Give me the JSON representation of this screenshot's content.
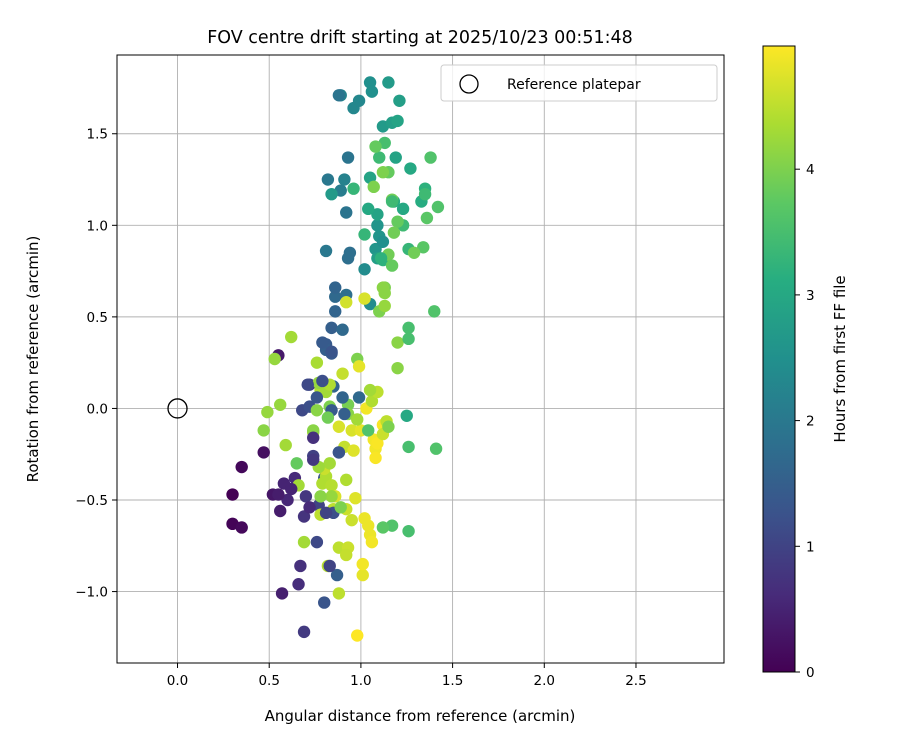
{
  "chart_data": {
    "type": "scatter",
    "title": "FOV centre drift starting at 2025/10/23 00:51:48",
    "xlabel": "Angular distance from reference (arcmin)",
    "ylabel": "Rotation from reference (arcmin)",
    "xlim": [
      -0.33,
      2.98
    ],
    "ylim": [
      -1.39,
      1.93
    ],
    "xticks": [
      0.0,
      0.5,
      1.0,
      1.5,
      2.0,
      2.5
    ],
    "xtick_labels": [
      "0.0",
      "0.5",
      "1.0",
      "1.5",
      "2.0",
      "2.5"
    ],
    "yticks": [
      -1.0,
      -0.5,
      0.0,
      0.5,
      1.0,
      1.5
    ],
    "ytick_labels": [
      "−1.0",
      "−0.5",
      "0.0",
      "0.5",
      "1.0",
      "1.5"
    ],
    "grid": true,
    "legend": {
      "position": "top-right",
      "entries": [
        "Reference platepar"
      ]
    },
    "reference_point": {
      "x": 0.0,
      "y": 0.0
    },
    "colorbar": {
      "label": "Hours from first FF file",
      "min": 0,
      "max": 4.98,
      "ticks": [
        0,
        1,
        2,
        3,
        4
      ],
      "tick_labels": [
        "0",
        "1",
        "2",
        "3",
        "4"
      ],
      "colormap": "viridis"
    },
    "points": [
      {
        "x": 0.3,
        "y": -0.47,
        "h": 0.0
      },
      {
        "x": 0.3,
        "y": -0.63,
        "h": 0.05
      },
      {
        "x": 0.35,
        "y": -0.32,
        "h": 0.1
      },
      {
        "x": 0.35,
        "y": -0.65,
        "h": 0.12
      },
      {
        "x": 0.47,
        "y": -0.24,
        "h": 0.2
      },
      {
        "x": 0.52,
        "y": -0.47,
        "h": 0.3
      },
      {
        "x": 0.55,
        "y": 0.29,
        "h": 0.35
      },
      {
        "x": 0.56,
        "y": -0.56,
        "h": 0.4
      },
      {
        "x": 0.57,
        "y": -1.01,
        "h": 0.45
      },
      {
        "x": 0.58,
        "y": -0.41,
        "h": 0.5
      },
      {
        "x": 0.6,
        "y": -0.5,
        "h": 0.55
      },
      {
        "x": 0.64,
        "y": -0.38,
        "h": 0.6
      },
      {
        "x": 0.66,
        "y": -0.96,
        "h": 0.65
      },
      {
        "x": 0.67,
        "y": -0.86,
        "h": 0.7
      },
      {
        "x": 0.69,
        "y": -0.59,
        "h": 0.75
      },
      {
        "x": 0.7,
        "y": -0.48,
        "h": 0.8
      },
      {
        "x": 0.69,
        "y": -1.22,
        "h": 0.85
      },
      {
        "x": 0.72,
        "y": 0.13,
        "h": 0.9
      },
      {
        "x": 0.74,
        "y": -0.26,
        "h": 0.95
      },
      {
        "x": 0.77,
        "y": -0.53,
        "h": 1.0
      },
      {
        "x": 0.76,
        "y": -0.73,
        "h": 1.1
      },
      {
        "x": 0.68,
        "y": -0.01,
        "h": 1.1
      },
      {
        "x": 0.72,
        "y": 0.01,
        "h": 1.2
      },
      {
        "x": 0.8,
        "y": -1.06,
        "h": 1.3
      },
      {
        "x": 0.8,
        "y": -0.38,
        "h": 1.3
      },
      {
        "x": 0.81,
        "y": 0.35,
        "h": 1.4
      },
      {
        "x": 0.84,
        "y": 0.3,
        "h": 1.4
      },
      {
        "x": 0.84,
        "y": 0.44,
        "h": 1.5
      },
      {
        "x": 0.87,
        "y": -0.91,
        "h": 1.5
      },
      {
        "x": 0.88,
        "y": -0.24,
        "h": 1.5
      },
      {
        "x": 0.85,
        "y": 0.12,
        "h": 1.6
      },
      {
        "x": 0.86,
        "y": 0.53,
        "h": 1.6
      },
      {
        "x": 0.86,
        "y": 0.61,
        "h": 1.7
      },
      {
        "x": 0.9,
        "y": 0.43,
        "h": 1.7
      },
      {
        "x": 0.92,
        "y": 0.62,
        "h": 1.8
      },
      {
        "x": 0.93,
        "y": 0.82,
        "h": 1.8
      },
      {
        "x": 0.92,
        "y": 1.07,
        "h": 1.9
      },
      {
        "x": 0.93,
        "y": 1.37,
        "h": 1.9
      },
      {
        "x": 0.81,
        "y": 0.86,
        "h": 2.0
      },
      {
        "x": 0.82,
        "y": 1.25,
        "h": 2.0
      },
      {
        "x": 0.89,
        "y": 1.19,
        "h": 2.1
      },
      {
        "x": 0.89,
        "y": 1.71,
        "h": 2.2
      },
      {
        "x": 0.91,
        "y": 1.25,
        "h": 2.2
      },
      {
        "x": 0.96,
        "y": 1.64,
        "h": 2.3
      },
      {
        "x": 0.99,
        "y": 1.68,
        "h": 2.3
      },
      {
        "x": 1.02,
        "y": 0.76,
        "h": 2.4
      },
      {
        "x": 1.05,
        "y": 0.57,
        "h": 2.4
      },
      {
        "x": 1.05,
        "y": 1.78,
        "h": 2.5
      },
      {
        "x": 1.06,
        "y": 1.73,
        "h": 2.5
      },
      {
        "x": 1.08,
        "y": 0.87,
        "h": 2.6
      },
      {
        "x": 1.1,
        "y": 0.94,
        "h": 2.6
      },
      {
        "x": 1.12,
        "y": 1.54,
        "h": 2.7
      },
      {
        "x": 1.15,
        "y": 1.78,
        "h": 2.7
      },
      {
        "x": 1.17,
        "y": 1.56,
        "h": 2.8
      },
      {
        "x": 1.21,
        "y": 1.68,
        "h": 2.8
      },
      {
        "x": 1.19,
        "y": 1.37,
        "h": 2.9
      },
      {
        "x": 1.2,
        "y": 1.57,
        "h": 2.9
      },
      {
        "x": 1.27,
        "y": 1.31,
        "h": 3.0
      },
      {
        "x": 1.23,
        "y": 1.09,
        "h": 3.0
      },
      {
        "x": 1.25,
        "y": -0.04,
        "h": 3.0
      },
      {
        "x": 1.18,
        "y": 1.13,
        "h": 3.1
      },
      {
        "x": 1.33,
        "y": 1.13,
        "h": 3.1
      },
      {
        "x": 1.35,
        "y": 1.2,
        "h": 3.2
      },
      {
        "x": 1.12,
        "y": 0.81,
        "h": 3.2
      },
      {
        "x": 1.26,
        "y": 0.87,
        "h": 3.3
      },
      {
        "x": 1.02,
        "y": 0.95,
        "h": 3.3
      },
      {
        "x": 1.1,
        "y": 1.37,
        "h": 3.4
      },
      {
        "x": 1.23,
        "y": 1.0,
        "h": 3.4
      },
      {
        "x": 1.35,
        "y": 1.17,
        "h": 3.4
      },
      {
        "x": 1.13,
        "y": 1.45,
        "h": 3.5
      },
      {
        "x": 1.26,
        "y": 0.44,
        "h": 3.5
      },
      {
        "x": 1.26,
        "y": -0.21,
        "h": 3.5
      },
      {
        "x": 1.26,
        "y": -0.67,
        "h": 3.5
      },
      {
        "x": 1.38,
        "y": 1.37,
        "h": 3.6
      },
      {
        "x": 1.42,
        "y": 1.1,
        "h": 3.6
      },
      {
        "x": 1.4,
        "y": 0.53,
        "h": 3.6
      },
      {
        "x": 1.41,
        "y": -0.22,
        "h": 3.6
      },
      {
        "x": 1.36,
        "y": 1.04,
        "h": 3.7
      },
      {
        "x": 1.34,
        "y": 0.88,
        "h": 3.7
      },
      {
        "x": 1.08,
        "y": 1.43,
        "h": 3.8
      },
      {
        "x": 1.15,
        "y": 1.29,
        "h": 3.8
      },
      {
        "x": 1.2,
        "y": 1.02,
        "h": 3.8
      },
      {
        "x": 1.18,
        "y": 0.96,
        "h": 3.9
      },
      {
        "x": 1.15,
        "y": 0.84,
        "h": 3.9
      },
      {
        "x": 0.93,
        "y": 0.02,
        "h": 3.95
      },
      {
        "x": 0.98,
        "y": 0.27,
        "h": 4.0
      },
      {
        "x": 1.1,
        "y": 0.53,
        "h": 4.0
      },
      {
        "x": 1.13,
        "y": 0.66,
        "h": 4.0
      },
      {
        "x": 1.13,
        "y": 0.63,
        "h": 4.1
      },
      {
        "x": 1.2,
        "y": 0.36,
        "h": 4.1
      },
      {
        "x": 1.2,
        "y": 0.22,
        "h": 4.1
      },
      {
        "x": 0.47,
        "y": -0.12,
        "h": 4.1
      },
      {
        "x": 0.49,
        "y": -0.02,
        "h": 4.2
      },
      {
        "x": 0.53,
        "y": 0.27,
        "h": 4.2
      },
      {
        "x": 0.56,
        "y": 0.02,
        "h": 4.2
      },
      {
        "x": 0.62,
        "y": 0.39,
        "h": 4.3
      },
      {
        "x": 0.59,
        "y": -0.2,
        "h": 4.3
      },
      {
        "x": 0.66,
        "y": -0.42,
        "h": 4.3
      },
      {
        "x": 0.69,
        "y": -0.73,
        "h": 4.3
      },
      {
        "x": 0.74,
        "y": -0.13,
        "h": 4.35
      },
      {
        "x": 0.76,
        "y": 0.25,
        "h": 4.35
      },
      {
        "x": 0.78,
        "y": 0.1,
        "h": 4.4
      },
      {
        "x": 0.79,
        "y": -0.41,
        "h": 4.4
      },
      {
        "x": 0.81,
        "y": -0.37,
        "h": 4.4
      },
      {
        "x": 0.82,
        "y": -0.86,
        "h": 4.45
      },
      {
        "x": 0.84,
        "y": -0.42,
        "h": 4.45
      },
      {
        "x": 0.85,
        "y": -0.55,
        "h": 4.5
      },
      {
        "x": 0.88,
        "y": -0.76,
        "h": 4.5
      },
      {
        "x": 0.88,
        "y": -1.01,
        "h": 4.5
      },
      {
        "x": 0.9,
        "y": 0.19,
        "h": 4.55
      },
      {
        "x": 0.91,
        "y": -0.21,
        "h": 4.55
      },
      {
        "x": 0.92,
        "y": -0.55,
        "h": 4.6
      },
      {
        "x": 0.93,
        "y": -0.76,
        "h": 4.6
      },
      {
        "x": 0.95,
        "y": -0.61,
        "h": 4.6
      },
      {
        "x": 0.92,
        "y": 0.58,
        "h": 4.65
      },
      {
        "x": 1.02,
        "y": 0.6,
        "h": 4.7
      },
      {
        "x": 0.88,
        "y": -0.1,
        "h": 4.7
      },
      {
        "x": 0.95,
        "y": -0.12,
        "h": 4.7
      },
      {
        "x": 0.96,
        "y": -0.23,
        "h": 4.75
      },
      {
        "x": 0.97,
        "y": -0.49,
        "h": 4.75
      },
      {
        "x": 0.99,
        "y": 0.23,
        "h": 4.8
      },
      {
        "x": 1.0,
        "y": -0.12,
        "h": 4.8
      },
      {
        "x": 1.01,
        "y": -0.91,
        "h": 4.8
      },
      {
        "x": 1.02,
        "y": -0.6,
        "h": 4.85
      },
      {
        "x": 1.04,
        "y": -0.64,
        "h": 4.85
      },
      {
        "x": 1.05,
        "y": -0.69,
        "h": 4.85
      },
      {
        "x": 1.06,
        "y": -0.73,
        "h": 4.9
      },
      {
        "x": 1.07,
        "y": -0.17,
        "h": 4.9
      },
      {
        "x": 1.08,
        "y": -0.22,
        "h": 4.9
      },
      {
        "x": 1.08,
        "y": -0.27,
        "h": 4.95
      },
      {
        "x": 1.09,
        "y": -0.19,
        "h": 4.95
      },
      {
        "x": 1.12,
        "y": -0.09,
        "h": 4.95
      },
      {
        "x": 0.98,
        "y": -1.24,
        "h": 4.98
      },
      {
        "x": 1.01,
        "y": -0.85,
        "h": 4.9
      },
      {
        "x": 1.03,
        "y": 0.0,
        "h": 4.9
      },
      {
        "x": 0.86,
        "y": -0.48,
        "h": 4.7
      },
      {
        "x": 0.8,
        "y": -0.33,
        "h": 4.6
      },
      {
        "x": 0.78,
        "y": -0.58,
        "h": 4.5
      },
      {
        "x": 0.83,
        "y": -0.3,
        "h": 4.3
      },
      {
        "x": 0.92,
        "y": -0.39,
        "h": 4.4
      },
      {
        "x": 0.92,
        "y": -0.8,
        "h": 4.55
      },
      {
        "x": 0.84,
        "y": -0.48,
        "h": 4.2
      },
      {
        "x": 0.74,
        "y": -0.12,
        "h": 4.1
      },
      {
        "x": 0.77,
        "y": -0.32,
        "h": 4.25
      },
      {
        "x": 0.78,
        "y": -0.48,
        "h": 4.1
      },
      {
        "x": 0.77,
        "y": 0.14,
        "h": 4.2
      },
      {
        "x": 0.81,
        "y": 0.09,
        "h": 4.3
      },
      {
        "x": 0.83,
        "y": 0.13,
        "h": 4.4
      },
      {
        "x": 0.76,
        "y": -0.01,
        "h": 4.1
      },
      {
        "x": 0.83,
        "y": 0.01,
        "h": 4.0
      },
      {
        "x": 0.93,
        "y": -0.03,
        "h": 4.1
      },
      {
        "x": 0.98,
        "y": -0.06,
        "h": 4.3
      },
      {
        "x": 1.06,
        "y": 0.04,
        "h": 4.4
      },
      {
        "x": 1.09,
        "y": 0.09,
        "h": 4.5
      },
      {
        "x": 1.14,
        "y": -0.07,
        "h": 4.5
      },
      {
        "x": 1.12,
        "y": -0.14,
        "h": 4.6
      },
      {
        "x": 1.15,
        "y": -0.1,
        "h": 4.0
      },
      {
        "x": 0.84,
        "y": 1.17,
        "h": 2.7
      },
      {
        "x": 1.05,
        "y": 1.26,
        "h": 2.9
      },
      {
        "x": 1.09,
        "y": 1.0,
        "h": 2.6
      },
      {
        "x": 1.09,
        "y": 0.82,
        "h": 2.8
      },
      {
        "x": 1.12,
        "y": 0.91,
        "h": 2.5
      },
      {
        "x": 1.09,
        "y": 1.06,
        "h": 2.9
      },
      {
        "x": 1.07,
        "y": 1.21,
        "h": 4.0
      },
      {
        "x": 0.94,
        "y": 0.85,
        "h": 1.8
      },
      {
        "x": 0.88,
        "y": 1.71,
        "h": 1.9
      },
      {
        "x": 0.96,
        "y": 1.2,
        "h": 3.3
      },
      {
        "x": 1.04,
        "y": 1.09,
        "h": 3.0
      },
      {
        "x": 1.11,
        "y": 0.82,
        "h": 3.2
      },
      {
        "x": 1.17,
        "y": 1.14,
        "h": 3.9
      },
      {
        "x": 1.29,
        "y": 0.85,
        "h": 3.9
      },
      {
        "x": 1.17,
        "y": 1.13,
        "h": 3.4
      },
      {
        "x": 0.86,
        "y": 0.66,
        "h": 1.6
      },
      {
        "x": 0.81,
        "y": 0.32,
        "h": 1.5
      },
      {
        "x": 0.79,
        "y": 0.36,
        "h": 1.4
      },
      {
        "x": 0.84,
        "y": 0.31,
        "h": 1.3
      },
      {
        "x": 0.79,
        "y": 0.15,
        "h": 1.2
      },
      {
        "x": 0.71,
        "y": 0.13,
        "h": 1.1
      },
      {
        "x": 0.76,
        "y": 0.06,
        "h": 1.3
      },
      {
        "x": 0.84,
        "y": -0.01,
        "h": 1.4
      },
      {
        "x": 0.91,
        "y": -0.03,
        "h": 1.5
      },
      {
        "x": 0.9,
        "y": 0.06,
        "h": 1.6
      },
      {
        "x": 0.99,
        "y": 0.06,
        "h": 1.7
      },
      {
        "x": 0.88,
        "y": -0.24,
        "h": 1.3
      },
      {
        "x": 0.85,
        "y": -0.57,
        "h": 1.2
      },
      {
        "x": 0.81,
        "y": -0.57,
        "h": 1.0
      },
      {
        "x": 0.83,
        "y": -0.86,
        "h": 1.0
      },
      {
        "x": 0.74,
        "y": -0.28,
        "h": 0.8
      },
      {
        "x": 0.74,
        "y": -0.16,
        "h": 0.7
      },
      {
        "x": 0.72,
        "y": -0.54,
        "h": 0.6
      },
      {
        "x": 0.62,
        "y": -0.44,
        "h": 0.5
      },
      {
        "x": 0.55,
        "y": -0.47,
        "h": 0.4
      },
      {
        "x": 1.04,
        "y": -0.12,
        "h": 3.6
      },
      {
        "x": 1.17,
        "y": 0.78,
        "h": 3.8
      },
      {
        "x": 1.26,
        "y": 0.38,
        "h": 3.5
      },
      {
        "x": 1.17,
        "y": -0.64,
        "h": 3.6
      },
      {
        "x": 1.12,
        "y": -0.65,
        "h": 3.7
      },
      {
        "x": 0.89,
        "y": -0.54,
        "h": 4.0
      },
      {
        "x": 0.82,
        "y": -0.05,
        "h": 3.9
      },
      {
        "x": 0.65,
        "y": -0.3,
        "h": 3.8
      },
      {
        "x": 1.12,
        "y": 1.29,
        "h": 4.0
      },
      {
        "x": 1.12,
        "y": 0.66,
        "h": 4.1
      },
      {
        "x": 1.13,
        "y": 0.56,
        "h": 4.2
      },
      {
        "x": 1.05,
        "y": 0.1,
        "h": 4.3
      }
    ]
  }
}
